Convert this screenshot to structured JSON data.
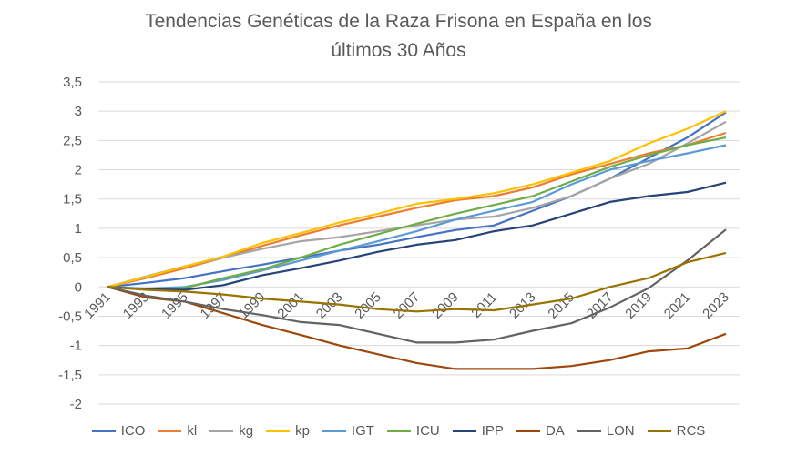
{
  "chart_data": {
    "type": "line",
    "title": [
      "Tendencias Genéticas de la Raza Frisona en España en los",
      "últimos 30 Años"
    ],
    "xlabel": "",
    "ylabel": "",
    "x": [
      1991,
      1993,
      1995,
      1997,
      1999,
      2001,
      2003,
      2005,
      2007,
      2009,
      2011,
      2013,
      2015,
      2017,
      2019,
      2021,
      2023
    ],
    "x_tick_labels": [
      "1991",
      "1993",
      "1995",
      "1997",
      "1999",
      "2001",
      "2003",
      "2005",
      "2007",
      "2009",
      "2011",
      "2013",
      "2015",
      "2017",
      "2019",
      "2021",
      "2023"
    ],
    "ylim": [
      -2,
      3.5
    ],
    "y_ticks": [
      3.5,
      3,
      2.5,
      2,
      1.5,
      1,
      0.5,
      0,
      -0.5,
      -1,
      -1.5,
      -2
    ],
    "y_tick_labels": [
      "3,5",
      "3",
      "2,5",
      "2",
      "1,5",
      "1",
      "0,5",
      "0",
      "-0,5",
      "-1",
      "-1,5",
      "-2"
    ],
    "grid": true,
    "legend_position": "bottom",
    "series": [
      {
        "name": "ICO",
        "color": "#4472C4",
        "values": [
          0,
          0.07,
          0.15,
          0.27,
          0.38,
          0.5,
          0.62,
          0.72,
          0.85,
          0.97,
          1.05,
          1.3,
          1.55,
          1.85,
          2.2,
          2.55,
          2.98
        ]
      },
      {
        "name": "kl",
        "color": "#ED7D31",
        "values": [
          0,
          0.15,
          0.32,
          0.5,
          0.7,
          0.88,
          1.05,
          1.2,
          1.35,
          1.48,
          1.55,
          1.7,
          1.92,
          2.1,
          2.28,
          2.42,
          2.63
        ]
      },
      {
        "name": "kg",
        "color": "#A5A5A5",
        "values": [
          0,
          0.18,
          0.35,
          0.5,
          0.65,
          0.78,
          0.85,
          0.95,
          1.05,
          1.15,
          1.2,
          1.35,
          1.55,
          1.85,
          2.1,
          2.45,
          2.82
        ]
      },
      {
        "name": "kp",
        "color": "#FFC000",
        "values": [
          0,
          0.17,
          0.35,
          0.52,
          0.75,
          0.92,
          1.1,
          1.25,
          1.42,
          1.5,
          1.6,
          1.75,
          1.95,
          2.15,
          2.45,
          2.7,
          3.0
        ]
      },
      {
        "name": "IGT",
        "color": "#5B9BD5",
        "values": [
          0,
          -0.03,
          0,
          0.12,
          0.28,
          0.45,
          0.62,
          0.78,
          0.95,
          1.15,
          1.3,
          1.45,
          1.75,
          2.0,
          2.15,
          2.28,
          2.42
        ]
      },
      {
        "name": "ICU",
        "color": "#70AD47",
        "values": [
          0,
          -0.04,
          -0.02,
          0.15,
          0.3,
          0.5,
          0.72,
          0.9,
          1.08,
          1.25,
          1.4,
          1.55,
          1.8,
          2.05,
          2.25,
          2.42,
          2.55
        ]
      },
      {
        "name": "IPP",
        "color": "#264478",
        "values": [
          0,
          -0.04,
          -0.05,
          0.03,
          0.2,
          0.32,
          0.45,
          0.6,
          0.72,
          0.8,
          0.95,
          1.05,
          1.25,
          1.45,
          1.55,
          1.62,
          1.78
        ]
      },
      {
        "name": "DA",
        "color": "#9E480E",
        "values": [
          0,
          -0.18,
          -0.25,
          -0.45,
          -0.65,
          -0.82,
          -1.0,
          -1.15,
          -1.3,
          -1.4,
          -1.4,
          -1.4,
          -1.35,
          -1.25,
          -1.1,
          -1.05,
          -0.8
        ]
      },
      {
        "name": "LON",
        "color": "#636363",
        "values": [
          0,
          -0.15,
          -0.25,
          -0.38,
          -0.48,
          -0.6,
          -0.65,
          -0.8,
          -0.95,
          -0.95,
          -0.9,
          -0.75,
          -0.62,
          -0.35,
          -0.02,
          0.45,
          0.98
        ]
      },
      {
        "name": "RCS",
        "color": "#997300",
        "values": [
          0,
          -0.05,
          -0.08,
          -0.13,
          -0.2,
          -0.25,
          -0.3,
          -0.38,
          -0.42,
          -0.38,
          -0.4,
          -0.3,
          -0.2,
          0,
          0.15,
          0.42,
          0.58
        ]
      }
    ]
  }
}
